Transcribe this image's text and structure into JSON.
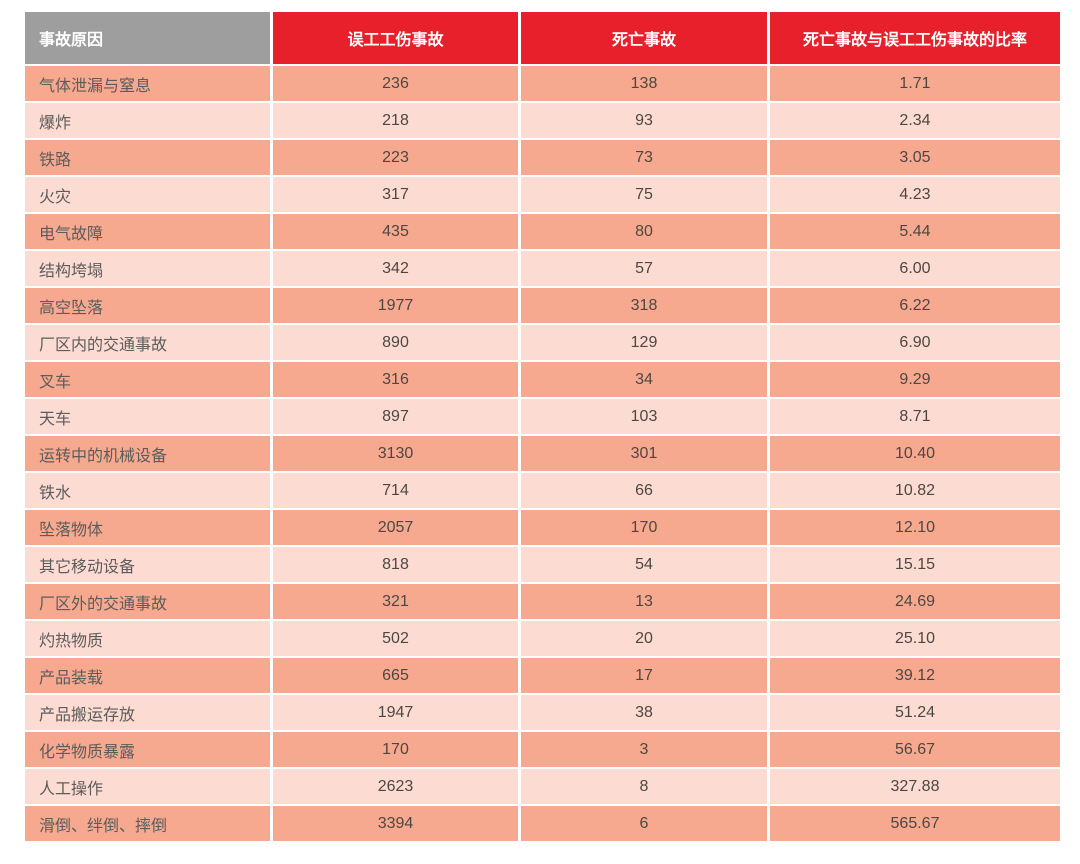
{
  "chart_data": {
    "type": "table",
    "columns": [
      "事故原因",
      "误工工伤事故",
      "死亡事故",
      "死亡事故与误工工伤事故的比率"
    ],
    "rows": [
      [
        "气体泄漏与窒息",
        "236",
        "138",
        "1.71"
      ],
      [
        "爆炸",
        "218",
        "93",
        "2.34"
      ],
      [
        "铁路",
        "223",
        "73",
        "3.05"
      ],
      [
        "火灾",
        "317",
        "75",
        "4.23"
      ],
      [
        "电气故障",
        "435",
        "80",
        "5.44"
      ],
      [
        "结构垮塌",
        "342",
        "57",
        "6.00"
      ],
      [
        "高空坠落",
        "1977",
        "318",
        "6.22"
      ],
      [
        "厂区内的交通事故",
        "890",
        "129",
        "6.90"
      ],
      [
        "叉车",
        "316",
        "34",
        "9.29"
      ],
      [
        "天车",
        "897",
        "103",
        "8.71"
      ],
      [
        "运转中的机械设备",
        "3130",
        "301",
        "10.40"
      ],
      [
        "铁水",
        "714",
        "66",
        "10.82"
      ],
      [
        "坠落物体",
        "2057",
        "170",
        "12.10"
      ],
      [
        "其它移动设备",
        "818",
        "54",
        "15.15"
      ],
      [
        "厂区外的交通事故",
        "321",
        "13",
        "24.69"
      ],
      [
        "灼热物质",
        "502",
        "20",
        "25.10"
      ],
      [
        "产品装载",
        "665",
        "17",
        "39.12"
      ],
      [
        "产品搬运存放",
        "1947",
        "38",
        "51.24"
      ],
      [
        "化学物质暴露",
        "170",
        "3",
        "56.67"
      ],
      [
        "人工操作",
        "2623",
        "8",
        "327.88"
      ],
      [
        "滑倒、绊倒、摔倒",
        "3394",
        "6",
        "565.67"
      ]
    ]
  },
  "colors": {
    "header_red": "#e7202c",
    "header_gray": "#9e9e9e",
    "row_dark": "#f6a98f",
    "row_light": "#fcdcd2",
    "header_text": "#ffffff",
    "cell_text": "#4d4742",
    "label_text": "#5c5c5c"
  }
}
